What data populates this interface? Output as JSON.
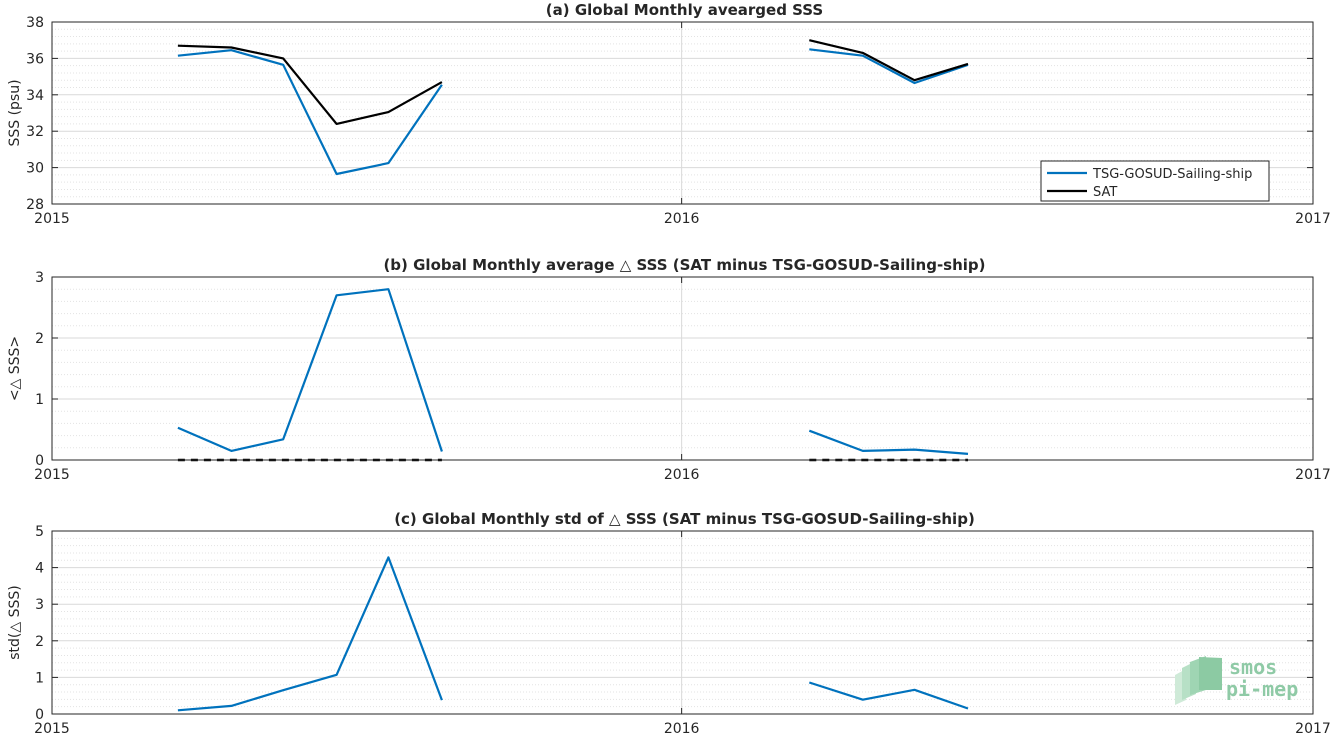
{
  "colors": {
    "tsg": "#0072BD",
    "sat": "#000000",
    "grid": "#d9d9d9",
    "axis": "#262626"
  },
  "chart_data": [
    {
      "type": "line",
      "title": "(a) Global Monthly avearged SSS",
      "ylabel": "SSS (psu)",
      "xlim": [
        "2015-01-01",
        "2017-01-01"
      ],
      "ylim": [
        28,
        38
      ],
      "yticks": [
        28,
        30,
        32,
        34,
        36,
        38
      ],
      "xticks": [
        {
          "date": "2015-01-01",
          "label": "2015"
        },
        {
          "date": "2016-01-01",
          "label": "2016"
        },
        {
          "date": "2017-01-01",
          "label": "2017"
        }
      ],
      "grid": true,
      "legend": {
        "position": "bottom-right",
        "entries": [
          "TSG-GOSUD-Sailing-ship",
          "SAT"
        ]
      },
      "series": [
        {
          "name": "TSG-GOSUD-Sailing-ship",
          "color": "#0072BD",
          "style": "solid",
          "segments": [
            {
              "x": [
                "2015-03-15",
                "2015-04-15",
                "2015-05-15",
                "2015-06-15",
                "2015-07-15",
                "2015-08-15"
              ],
              "y": [
                36.15,
                36.45,
                35.65,
                29.65,
                30.25,
                34.55
              ]
            },
            {
              "x": [
                "2016-03-15",
                "2016-04-15",
                "2016-05-15",
                "2016-06-15"
              ],
              "y": [
                36.5,
                36.15,
                34.65,
                35.65
              ]
            }
          ]
        },
        {
          "name": "SAT",
          "color": "#000000",
          "style": "solid",
          "segments": [
            {
              "x": [
                "2015-03-15",
                "2015-04-15",
                "2015-05-15",
                "2015-06-15",
                "2015-07-15",
                "2015-08-15"
              ],
              "y": [
                36.7,
                36.6,
                36.0,
                32.4,
                33.05,
                34.7
              ]
            },
            {
              "x": [
                "2016-03-15",
                "2016-04-15",
                "2016-05-15",
                "2016-06-15"
              ],
              "y": [
                37.0,
                36.3,
                34.8,
                35.7
              ]
            }
          ]
        }
      ]
    },
    {
      "type": "line",
      "title": "(b) Global Monthly average △ SSS (SAT minus TSG-GOSUD-Sailing-ship)",
      "ylabel": "<△ SSS>",
      "xlim": [
        "2015-01-01",
        "2017-01-01"
      ],
      "ylim": [
        0,
        3
      ],
      "yticks": [
        0,
        1,
        2,
        3
      ],
      "xticks": [
        {
          "date": "2015-01-01",
          "label": "2015"
        },
        {
          "date": "2016-01-01",
          "label": "2016"
        },
        {
          "date": "2017-01-01",
          "label": "2017"
        }
      ],
      "grid": true,
      "series": [
        {
          "color": "#0072BD",
          "style": "solid",
          "segments": [
            {
              "x": [
                "2015-03-15",
                "2015-04-15",
                "2015-05-15",
                "2015-06-15",
                "2015-07-15",
                "2015-08-15"
              ],
              "y": [
                0.53,
                0.15,
                0.34,
                2.7,
                2.8,
                0.14
              ]
            },
            {
              "x": [
                "2016-03-15",
                "2016-04-15",
                "2016-05-15",
                "2016-06-15"
              ],
              "y": [
                0.48,
                0.15,
                0.17,
                0.1
              ]
            }
          ]
        },
        {
          "color": "#000000",
          "style": "dashed",
          "segments": [
            {
              "x": [
                "2015-03-15",
                "2015-08-15"
              ],
              "y": [
                0,
                0
              ]
            },
            {
              "x": [
                "2016-03-15",
                "2016-06-15"
              ],
              "y": [
                0,
                0
              ]
            }
          ]
        }
      ]
    },
    {
      "type": "line",
      "title": "(c) Global Monthly std of △ SSS (SAT minus TSG-GOSUD-Sailing-ship)",
      "ylabel": "std(△ SSS)",
      "xlim": [
        "2015-01-01",
        "2017-01-01"
      ],
      "ylim": [
        0,
        5
      ],
      "yticks": [
        0,
        1,
        2,
        3,
        4,
        5
      ],
      "xticks": [
        {
          "date": "2015-01-01",
          "label": "2015"
        },
        {
          "date": "2016-01-01",
          "label": "2016"
        },
        {
          "date": "2017-01-01",
          "label": "2017"
        }
      ],
      "grid": true,
      "series": [
        {
          "color": "#0072BD",
          "style": "solid",
          "segments": [
            {
              "x": [
                "2015-03-15",
                "2015-04-15",
                "2015-05-15",
                "2015-06-15",
                "2015-07-15",
                "2015-08-15"
              ],
              "y": [
                0.1,
                0.22,
                0.65,
                1.07,
                4.28,
                0.38
              ]
            },
            {
              "x": [
                "2016-03-15",
                "2016-04-15",
                "2016-05-15",
                "2016-06-15"
              ],
              "y": [
                0.86,
                0.39,
                0.66,
                0.15
              ]
            }
          ]
        }
      ]
    }
  ],
  "logo": {
    "line1": "smos",
    "line2": "pi-mep"
  }
}
